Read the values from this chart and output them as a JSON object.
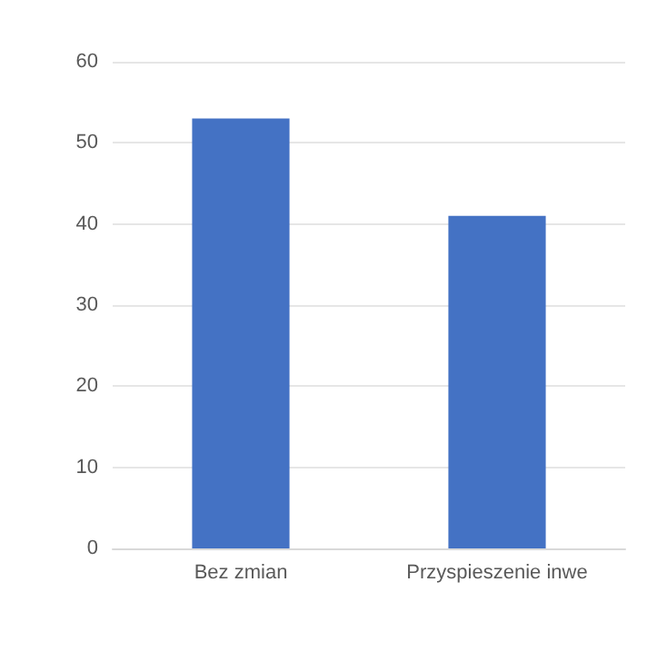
{
  "chart_data": {
    "type": "bar",
    "categories": [
      "Bez zmian",
      "Przyspieszenie inwe"
    ],
    "values": [
      53,
      41
    ],
    "color": "#4472c4",
    "ylim": [
      0,
      60
    ],
    "yticks": [
      0,
      10,
      20,
      30,
      40,
      50,
      60
    ],
    "grid": "y"
  }
}
